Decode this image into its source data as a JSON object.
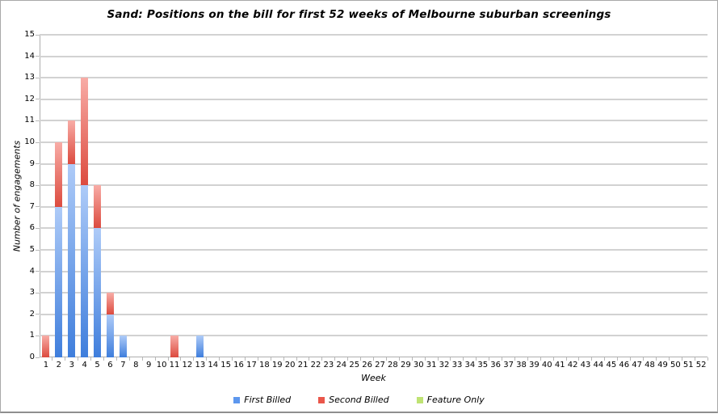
{
  "window": {
    "background": "#ffffff",
    "border_color": "#a9a9a9",
    "gridline_color": "#d2d2d2",
    "axis_color": "#aeaeae"
  },
  "chart_data": {
    "type": "bar",
    "stacked": true,
    "title": "Sand: Positions on the bill for first 52 weeks of Melbourne suburban screenings",
    "xlabel": "Week",
    "ylabel": "Number of engagements",
    "ylim": [
      0,
      15
    ],
    "ytick_step": 1,
    "grid": true,
    "legend_position": "bottom",
    "categories": [
      1,
      2,
      3,
      4,
      5,
      6,
      7,
      8,
      9,
      10,
      11,
      12,
      13,
      14,
      15,
      16,
      17,
      18,
      19,
      20,
      21,
      22,
      23,
      24,
      25,
      26,
      27,
      28,
      29,
      30,
      31,
      32,
      33,
      34,
      35,
      36,
      37,
      38,
      39,
      40,
      41,
      42,
      43,
      44,
      45,
      46,
      47,
      48,
      49,
      50,
      51,
      52
    ],
    "series": [
      {
        "name": "First Billed",
        "legend_color": "#5d97ee",
        "gradient_top": "#aecbf8",
        "gradient_bottom": "#3f7edc",
        "values": [
          0,
          7,
          9,
          8,
          6,
          2,
          1,
          0,
          0,
          0,
          0,
          0,
          1,
          0,
          0,
          0,
          0,
          0,
          0,
          0,
          0,
          0,
          0,
          0,
          0,
          0,
          0,
          0,
          0,
          0,
          0,
          0,
          0,
          0,
          0,
          0,
          0,
          0,
          0,
          0,
          0,
          0,
          0,
          0,
          0,
          0,
          0,
          0,
          0,
          0,
          0,
          0
        ]
      },
      {
        "name": "Second Billed",
        "legend_color": "#ea564a",
        "gradient_top": "#f8aca6",
        "gradient_bottom": "#dc4b3f",
        "values": [
          1,
          3,
          2,
          5,
          2,
          1,
          0,
          0,
          0,
          0,
          1,
          0,
          0,
          0,
          0,
          0,
          0,
          0,
          0,
          0,
          0,
          0,
          0,
          0,
          0,
          0,
          0,
          0,
          0,
          0,
          0,
          0,
          0,
          0,
          0,
          0,
          0,
          0,
          0,
          0,
          0,
          0,
          0,
          0,
          0,
          0,
          0,
          0,
          0,
          0,
          0,
          0
        ]
      },
      {
        "name": "Feature Only",
        "legend_color": "#bfe373",
        "gradient_top": "#d9efa0",
        "gradient_bottom": "#a3d455",
        "values": [
          0,
          0,
          0,
          0,
          0,
          0,
          0,
          0,
          0,
          0,
          0,
          0,
          0,
          0,
          0,
          0,
          0,
          0,
          0,
          0,
          0,
          0,
          0,
          0,
          0,
          0,
          0,
          0,
          0,
          0,
          0,
          0,
          0,
          0,
          0,
          0,
          0,
          0,
          0,
          0,
          0,
          0,
          0,
          0,
          0,
          0,
          0,
          0,
          0,
          0,
          0,
          0
        ]
      }
    ]
  }
}
